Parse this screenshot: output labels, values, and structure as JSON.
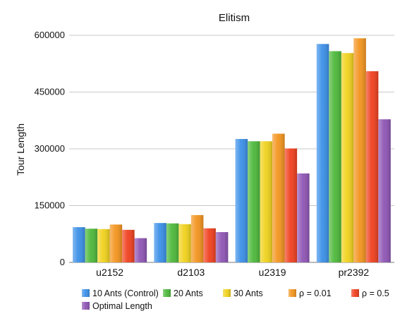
{
  "chart_data": {
    "type": "bar",
    "title": "Elitism",
    "xlabel": "",
    "ylabel": "Tour Length",
    "ylim": [
      0,
      600000
    ],
    "yticks": [
      0,
      150000,
      300000,
      450000,
      600000
    ],
    "grid": true,
    "legend_position": "bottom",
    "categories": [
      "u2152",
      "d2103",
      "u2319",
      "pr2392"
    ],
    "series": [
      {
        "name": "10 Ants (Control)",
        "color": "#3a8fe8",
        "values": [
          93000,
          104000,
          326000,
          577000
        ]
      },
      {
        "name": "20 Ants",
        "color": "#4cb83a",
        "values": [
          89000,
          103000,
          320000,
          558000
        ]
      },
      {
        "name": "30 Ants",
        "color": "#f0d21c",
        "values": [
          88000,
          101000,
          320000,
          553000
        ]
      },
      {
        "name": "ρ = 0.01",
        "color": "#f3941e",
        "values": [
          100000,
          125000,
          340000,
          592000
        ]
      },
      {
        "name": "ρ = 0.5",
        "color": "#f0401e",
        "values": [
          86000,
          90000,
          301000,
          505000
        ]
      },
      {
        "name": "Optimal Length",
        "color": "#8e55b4",
        "values": [
          64000,
          80000,
          235000,
          378000
        ]
      }
    ]
  }
}
